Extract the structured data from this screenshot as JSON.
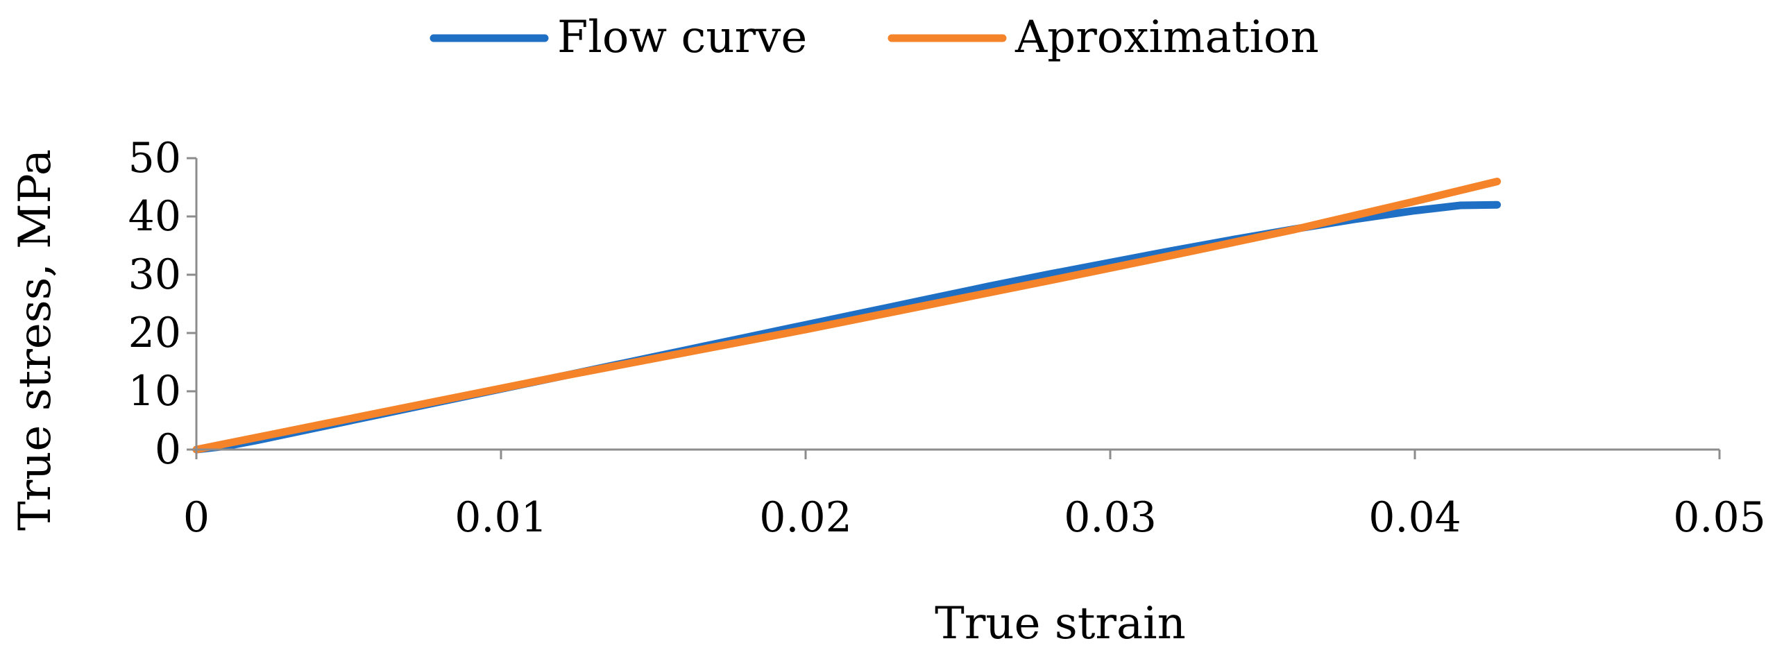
{
  "chart_data": {
    "type": "line",
    "xlabel": "True strain",
    "ylabel": "True stress, MPa",
    "xlim": [
      0,
      0.05
    ],
    "ylim": [
      0,
      50
    ],
    "xticks": [
      "0",
      "0.01",
      "0.02",
      "0.03",
      "0.04",
      "0.05"
    ],
    "yticks": [
      "0",
      "10",
      "20",
      "30",
      "40",
      "50"
    ],
    "grid": false,
    "legend_position": "top",
    "series": [
      {
        "name": "Flow curve",
        "color": "#1f6fc5",
        "x": [
          0,
          0.001,
          0.002,
          0.004,
          0.006,
          0.008,
          0.01,
          0.012,
          0.014,
          0.016,
          0.018,
          0.02,
          0.022,
          0.024,
          0.026,
          0.028,
          0.03,
          0.032,
          0.034,
          0.036,
          0.038,
          0.04,
          0.0415,
          0.0427
        ],
        "y": [
          0,
          0.6,
          1.6,
          3.8,
          6.0,
          8.2,
          10.4,
          12.6,
          14.8,
          17.0,
          19.2,
          21.4,
          23.6,
          25.8,
          28.0,
          30.1,
          32.1,
          34.1,
          36.0,
          37.8,
          39.5,
          41.0,
          41.9,
          42.0
        ]
      },
      {
        "name": "Aproximation",
        "color": "#f5832a",
        "x": [
          0,
          0.004,
          0.008,
          0.012,
          0.016,
          0.02,
          0.024,
          0.028,
          0.032,
          0.036,
          0.04,
          0.0427
        ],
        "y": [
          0,
          4.2,
          8.4,
          12.6,
          16.6,
          20.6,
          24.8,
          29.0,
          33.3,
          37.7,
          42.6,
          46.0
        ]
      }
    ]
  }
}
